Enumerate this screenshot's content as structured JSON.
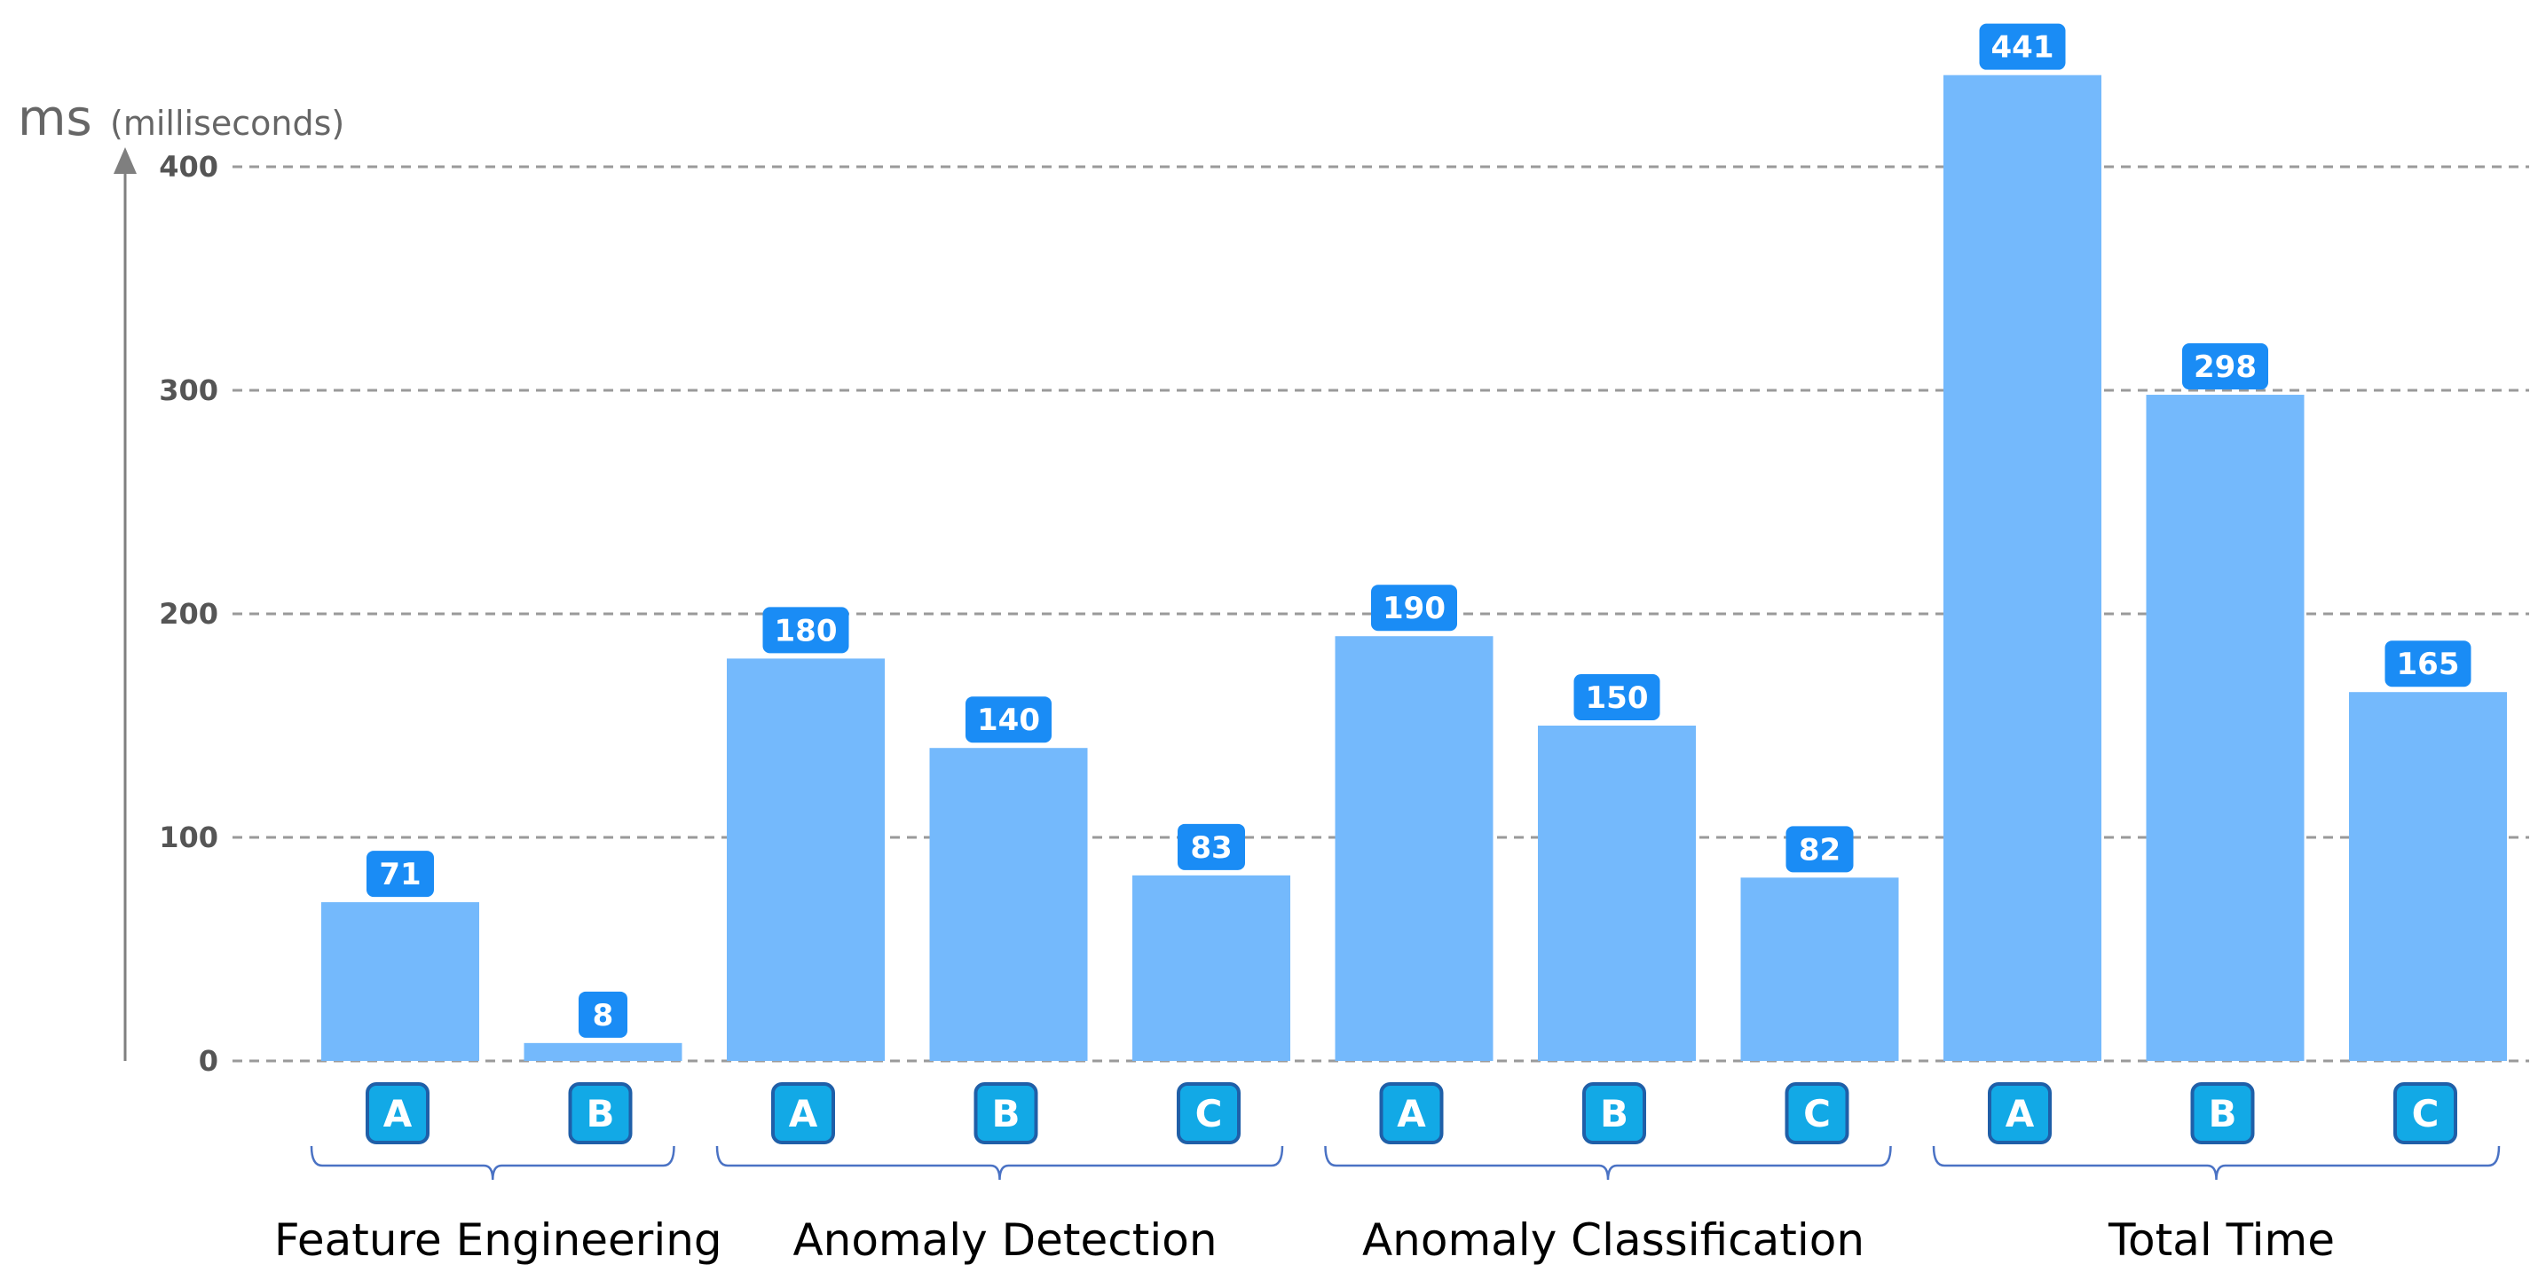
{
  "chart_data": {
    "type": "bar",
    "y_unit": "ms",
    "y_unit_note": "(milliseconds)",
    "ylim": [
      0,
      441
    ],
    "yticks": [
      0,
      100,
      200,
      300,
      400
    ],
    "grid": true,
    "groups": [
      {
        "name": "Feature Engineering",
        "bars": [
          {
            "label": "A",
            "value": 71
          },
          {
            "label": "B",
            "value": 8
          }
        ]
      },
      {
        "name": "Anomaly Detection",
        "bars": [
          {
            "label": "A",
            "value": 180
          },
          {
            "label": "B",
            "value": 140
          },
          {
            "label": "C",
            "value": 83
          }
        ]
      },
      {
        "name": "Anomaly Classification",
        "bars": [
          {
            "label": "A",
            "value": 190
          },
          {
            "label": "B",
            "value": 150
          },
          {
            "label": "C",
            "value": 82
          }
        ]
      },
      {
        "name": "Total Time",
        "bars": [
          {
            "label": "A",
            "value": 441
          },
          {
            "label": "B",
            "value": 298
          },
          {
            "label": "C",
            "value": 165
          }
        ]
      }
    ],
    "colors": {
      "bar": "#74b9fc",
      "value_badge": "#1a8cf5",
      "category_badge": "#12a9e6",
      "category_badge_border": "#1f5fa8",
      "grid": "#9a9a9a",
      "axis": "#7f7f7f",
      "brace": "#4a72c4"
    }
  }
}
